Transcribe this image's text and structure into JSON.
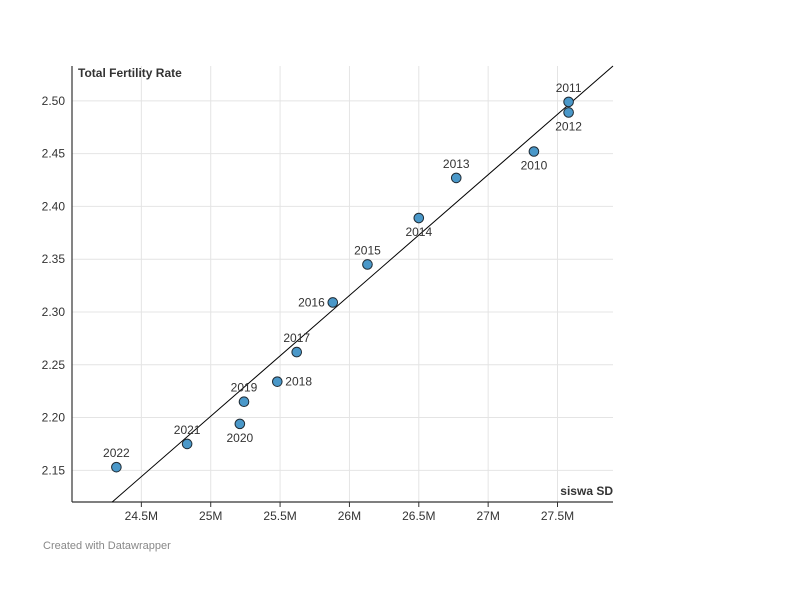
{
  "chart_data": {
    "type": "scatter",
    "ylabel": "Total Fertility Rate",
    "xlabel": "siswa SD",
    "xlim": [
      24.0,
      27.9
    ],
    "ylim": [
      2.12,
      2.533
    ],
    "xticks": [
      {
        "value": 24.5,
        "label": "24.5M"
      },
      {
        "value": 25.0,
        "label": "25M"
      },
      {
        "value": 25.5,
        "label": "25.5M"
      },
      {
        "value": 26.0,
        "label": "26M"
      },
      {
        "value": 26.5,
        "label": "26.5M"
      },
      {
        "value": 27.0,
        "label": "27M"
      },
      {
        "value": 27.5,
        "label": "27.5M"
      }
    ],
    "yticks": [
      {
        "value": 2.15,
        "label": "2.15"
      },
      {
        "value": 2.2,
        "label": "2.20"
      },
      {
        "value": 2.25,
        "label": "2.25"
      },
      {
        "value": 2.3,
        "label": "2.30"
      },
      {
        "value": 2.35,
        "label": "2.35"
      },
      {
        "value": 2.4,
        "label": "2.40"
      },
      {
        "value": 2.45,
        "label": "2.45"
      },
      {
        "value": 2.5,
        "label": "2.50"
      }
    ],
    "points": [
      {
        "label": "2010",
        "x": 27.33,
        "y": 2.452,
        "label_pos": "below"
      },
      {
        "label": "2011",
        "x": 27.58,
        "y": 2.499,
        "label_pos": "above"
      },
      {
        "label": "2012",
        "x": 27.58,
        "y": 2.489,
        "label_pos": "below"
      },
      {
        "label": "2013",
        "x": 26.77,
        "y": 2.427,
        "label_pos": "above"
      },
      {
        "label": "2014",
        "x": 26.5,
        "y": 2.389,
        "label_pos": "below"
      },
      {
        "label": "2015",
        "x": 26.13,
        "y": 2.345,
        "label_pos": "above"
      },
      {
        "label": "2016",
        "x": 25.88,
        "y": 2.309,
        "label_pos": "left"
      },
      {
        "label": "2017",
        "x": 25.62,
        "y": 2.262,
        "label_pos": "above"
      },
      {
        "label": "2018",
        "x": 25.48,
        "y": 2.234,
        "label_pos": "right"
      },
      {
        "label": "2019",
        "x": 25.24,
        "y": 2.215,
        "label_pos": "above"
      },
      {
        "label": "2020",
        "x": 25.21,
        "y": 2.194,
        "label_pos": "below"
      },
      {
        "label": "2021",
        "x": 24.83,
        "y": 2.175,
        "label_pos": "above"
      },
      {
        "label": "2022",
        "x": 24.32,
        "y": 2.153,
        "label_pos": "above"
      }
    ],
    "trendline": {
      "x1": 24.29,
      "y1": 2.12,
      "x2": 27.9,
      "y2": 2.533
    },
    "grid": true,
    "point_color": "#4a98c9",
    "point_stroke": "#1f2a33",
    "grid_color": "#e4e4e4",
    "axis_color": "#333333",
    "trend_color": "#000000"
  },
  "footer": {
    "credit": "Created with Datawrapper"
  }
}
